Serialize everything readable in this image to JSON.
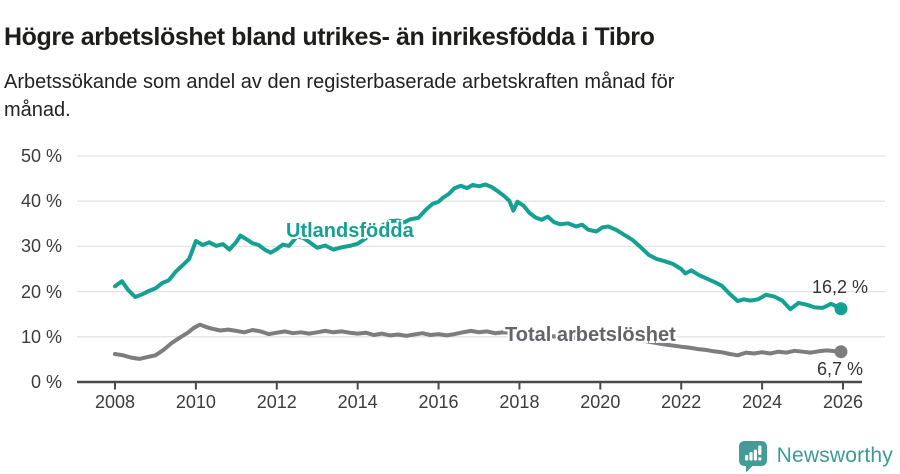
{
  "header": {
    "title": "Högre arbetslöshet bland utrikes- än inrikesfödda i Tibro",
    "subtitle": "Arbetssökande som andel av den registerbaserade arbetskraften månad för månad.",
    "subtitle_line1": "Arbetssökande som andel av den registerbaserade arbetskraften månad för",
    "subtitle_line2": "månad."
  },
  "footer": {
    "brand": "Newsworthy",
    "logo_icon": "newsworthy-speech-bubble-bar-chart-icon"
  },
  "colors": {
    "accent_teal": "#14a092",
    "line_gray": "#7d7d80",
    "label_gray": "#64646a",
    "axis": "#4a4a4a",
    "gridline": "#e3e3e3",
    "title_text": "#1d1d1b",
    "tick_text": "#3c3c3c",
    "brand_teal": "#3e9a94"
  },
  "chart_data": {
    "type": "line",
    "title": "Högre arbetslöshet bland utrikes- än inrikesfödda i Tibro",
    "subtitle": "Arbetssökande som andel av den registerbaserade arbetskraften månad för månad.",
    "xlabel": "",
    "ylabel": "",
    "grid": "horizontal",
    "legend": "inline-labels",
    "xlim": [
      2007.1,
      2026.5
    ],
    "ylim": [
      0,
      50
    ],
    "x_ticks": [
      2008,
      2010,
      2012,
      2014,
      2016,
      2018,
      2020,
      2022,
      2024,
      2026
    ],
    "y_ticks": [
      0,
      10,
      20,
      30,
      40,
      50
    ],
    "y_tick_suffix": " %",
    "series": [
      {
        "name": "Utlandsfödda",
        "color": "#14a092",
        "end_label": "16,2 %",
        "end_value": 16.2,
        "points": [
          [
            2008.0,
            21.2
          ],
          [
            2008.17,
            22.3
          ],
          [
            2008.33,
            20.3
          ],
          [
            2008.5,
            18.8
          ],
          [
            2008.67,
            19.4
          ],
          [
            2008.83,
            20.1
          ],
          [
            2009.0,
            20.7
          ],
          [
            2009.17,
            21.9
          ],
          [
            2009.33,
            22.5
          ],
          [
            2009.5,
            24.4
          ],
          [
            2009.67,
            25.8
          ],
          [
            2009.83,
            27.2
          ],
          [
            2009.92,
            29.3
          ],
          [
            2010.0,
            31.2
          ],
          [
            2010.17,
            30.3
          ],
          [
            2010.33,
            30.9
          ],
          [
            2010.5,
            30.1
          ],
          [
            2010.67,
            30.5
          ],
          [
            2010.83,
            29.3
          ],
          [
            2011.0,
            31.0
          ],
          [
            2011.1,
            32.4
          ],
          [
            2011.25,
            31.6
          ],
          [
            2011.4,
            30.7
          ],
          [
            2011.55,
            30.3
          ],
          [
            2011.7,
            29.3
          ],
          [
            2011.85,
            28.6
          ],
          [
            2012.0,
            29.4
          ],
          [
            2012.15,
            30.4
          ],
          [
            2012.3,
            30.1
          ],
          [
            2012.5,
            32.2
          ],
          [
            2012.65,
            31.9
          ],
          [
            2012.8,
            31.0
          ],
          [
            2013.0,
            29.7
          ],
          [
            2013.2,
            30.2
          ],
          [
            2013.4,
            29.3
          ],
          [
            2013.6,
            29.8
          ],
          [
            2013.8,
            30.1
          ],
          [
            2014.0,
            30.6
          ],
          [
            2014.2,
            31.8
          ],
          [
            2014.4,
            33.4
          ],
          [
            2014.6,
            34.6
          ],
          [
            2014.8,
            35.6
          ],
          [
            2015.0,
            35.7
          ],
          [
            2015.15,
            35.3
          ],
          [
            2015.3,
            36.0
          ],
          [
            2015.5,
            36.3
          ],
          [
            2015.7,
            38.2
          ],
          [
            2015.85,
            39.4
          ],
          [
            2016.0,
            39.9
          ],
          [
            2016.1,
            40.7
          ],
          [
            2016.25,
            41.6
          ],
          [
            2016.4,
            42.9
          ],
          [
            2016.55,
            43.4
          ],
          [
            2016.7,
            42.9
          ],
          [
            2016.85,
            43.6
          ],
          [
            2017.0,
            43.3
          ],
          [
            2017.15,
            43.7
          ],
          [
            2017.3,
            43.2
          ],
          [
            2017.45,
            42.3
          ],
          [
            2017.6,
            41.3
          ],
          [
            2017.75,
            40.1
          ],
          [
            2017.85,
            37.9
          ],
          [
            2017.95,
            39.9
          ],
          [
            2018.1,
            39.0
          ],
          [
            2018.25,
            37.4
          ],
          [
            2018.4,
            36.4
          ],
          [
            2018.55,
            35.9
          ],
          [
            2018.7,
            36.6
          ],
          [
            2018.85,
            35.4
          ],
          [
            2019.0,
            34.9
          ],
          [
            2019.2,
            35.1
          ],
          [
            2019.4,
            34.4
          ],
          [
            2019.55,
            34.8
          ],
          [
            2019.7,
            33.7
          ],
          [
            2019.9,
            33.3
          ],
          [
            2020.05,
            34.2
          ],
          [
            2020.2,
            34.4
          ],
          [
            2020.4,
            33.6
          ],
          [
            2020.6,
            32.5
          ],
          [
            2020.8,
            31.4
          ],
          [
            2021.0,
            29.8
          ],
          [
            2021.2,
            28.1
          ],
          [
            2021.4,
            27.2
          ],
          [
            2021.6,
            26.7
          ],
          [
            2021.8,
            26.1
          ],
          [
            2022.0,
            25.0
          ],
          [
            2022.1,
            24.0
          ],
          [
            2022.25,
            24.7
          ],
          [
            2022.45,
            23.6
          ],
          [
            2022.65,
            22.8
          ],
          [
            2022.85,
            22.0
          ],
          [
            2023.0,
            21.3
          ],
          [
            2023.2,
            19.5
          ],
          [
            2023.4,
            17.9
          ],
          [
            2023.55,
            18.3
          ],
          [
            2023.7,
            18.0
          ],
          [
            2023.9,
            18.3
          ],
          [
            2024.1,
            19.3
          ],
          [
            2024.3,
            18.9
          ],
          [
            2024.5,
            18.0
          ],
          [
            2024.7,
            16.1
          ],
          [
            2024.9,
            17.5
          ],
          [
            2025.1,
            17.1
          ],
          [
            2025.3,
            16.5
          ],
          [
            2025.5,
            16.4
          ],
          [
            2025.7,
            17.3
          ],
          [
            2025.85,
            16.7
          ],
          [
            2025.95,
            16.2
          ]
        ]
      },
      {
        "name": "Total arbetslöshet",
        "color": "#7d7d80",
        "end_label": "6,7 %",
        "end_value": 6.7,
        "points": [
          [
            2008.0,
            6.2
          ],
          [
            2008.2,
            5.9
          ],
          [
            2008.4,
            5.4
          ],
          [
            2008.6,
            5.1
          ],
          [
            2008.8,
            5.5
          ],
          [
            2009.0,
            5.9
          ],
          [
            2009.2,
            7.1
          ],
          [
            2009.4,
            8.6
          ],
          [
            2009.6,
            9.8
          ],
          [
            2009.8,
            10.9
          ],
          [
            2009.95,
            12.0
          ],
          [
            2010.1,
            12.7
          ],
          [
            2010.25,
            12.2
          ],
          [
            2010.4,
            11.8
          ],
          [
            2010.6,
            11.4
          ],
          [
            2010.8,
            11.6
          ],
          [
            2011.0,
            11.3
          ],
          [
            2011.2,
            11.0
          ],
          [
            2011.4,
            11.5
          ],
          [
            2011.6,
            11.2
          ],
          [
            2011.8,
            10.6
          ],
          [
            2012.0,
            10.9
          ],
          [
            2012.2,
            11.2
          ],
          [
            2012.4,
            10.8
          ],
          [
            2012.6,
            11.0
          ],
          [
            2012.8,
            10.7
          ],
          [
            2013.0,
            11.0
          ],
          [
            2013.2,
            11.3
          ],
          [
            2013.4,
            11.0
          ],
          [
            2013.6,
            11.2
          ],
          [
            2013.8,
            10.9
          ],
          [
            2014.0,
            10.7
          ],
          [
            2014.2,
            10.9
          ],
          [
            2014.4,
            10.4
          ],
          [
            2014.6,
            10.7
          ],
          [
            2014.8,
            10.3
          ],
          [
            2015.0,
            10.5
          ],
          [
            2015.2,
            10.2
          ],
          [
            2015.4,
            10.5
          ],
          [
            2015.6,
            10.8
          ],
          [
            2015.8,
            10.4
          ],
          [
            2016.0,
            10.6
          ],
          [
            2016.2,
            10.3
          ],
          [
            2016.4,
            10.6
          ],
          [
            2016.6,
            11.0
          ],
          [
            2016.8,
            11.3
          ],
          [
            2017.0,
            11.0
          ],
          [
            2017.2,
            11.2
          ],
          [
            2017.4,
            10.8
          ],
          [
            2017.6,
            11.0
          ],
          [
            2018.0,
            10.7
          ],
          [
            2018.4,
            10.4
          ],
          [
            2018.8,
            10.1
          ],
          [
            2019.2,
            9.9
          ],
          [
            2019.6,
            9.7
          ],
          [
            2020.0,
            10.4
          ],
          [
            2020.4,
            10.1
          ],
          [
            2020.8,
            9.6
          ],
          [
            2021.2,
            8.9
          ],
          [
            2021.6,
            8.3
          ],
          [
            2022.0,
            7.8
          ],
          [
            2022.2,
            7.6
          ],
          [
            2022.4,
            7.3
          ],
          [
            2022.6,
            7.1
          ],
          [
            2022.8,
            6.8
          ],
          [
            2023.0,
            6.6
          ],
          [
            2023.2,
            6.2
          ],
          [
            2023.4,
            5.9
          ],
          [
            2023.6,
            6.5
          ],
          [
            2023.8,
            6.3
          ],
          [
            2024.0,
            6.6
          ],
          [
            2024.2,
            6.3
          ],
          [
            2024.4,
            6.7
          ],
          [
            2024.6,
            6.5
          ],
          [
            2024.8,
            6.9
          ],
          [
            2025.0,
            6.7
          ],
          [
            2025.2,
            6.5
          ],
          [
            2025.4,
            6.8
          ],
          [
            2025.6,
            7.0
          ],
          [
            2025.8,
            6.8
          ],
          [
            2025.95,
            6.7
          ]
        ]
      }
    ]
  }
}
